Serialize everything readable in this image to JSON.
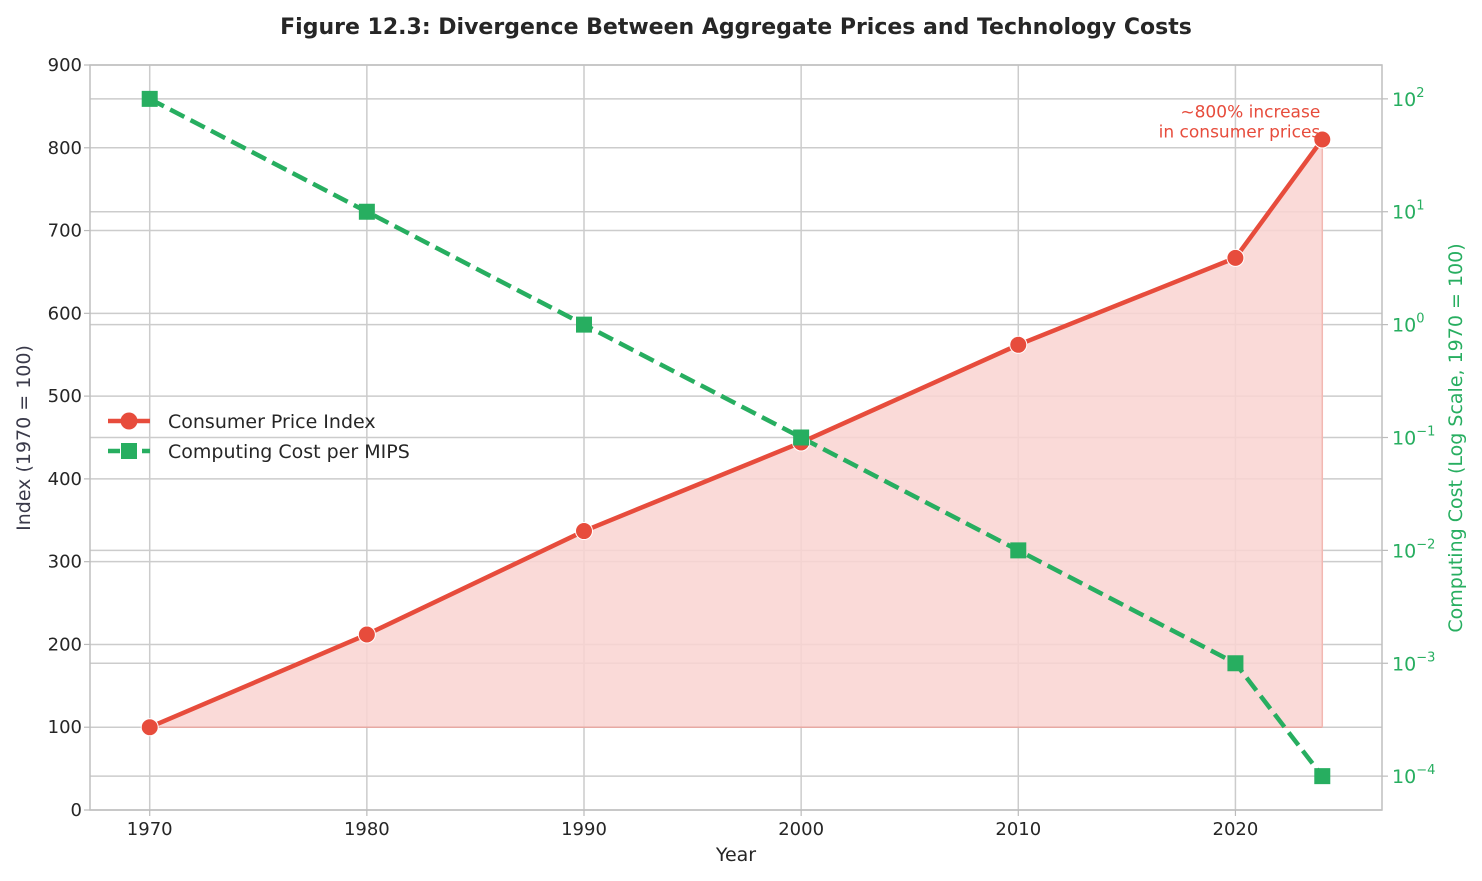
{
  "chart_data": {
    "type": "line",
    "title": "Figure 12.3: Divergence Between Aggregate Prices and Technology Costs",
    "xlabel": "Year",
    "ylabel_left": "Index (1970 = 100)",
    "ylabel_right": "Computing Cost (Log Scale, 1970 = 100)",
    "x_ticks": [
      "1970",
      "1980",
      "1990",
      "2000",
      "2010",
      "2020"
    ],
    "xlim": [
      1967.25,
      2026.75
    ],
    "ylim_left": [
      0,
      900
    ],
    "y_ticks_left": [
      "0",
      "100",
      "200",
      "300",
      "400",
      "500",
      "600",
      "700",
      "800",
      "900"
    ],
    "y_right_scale": "log",
    "ylim_right_log10": [
      -4.3,
      2.3
    ],
    "y_ticks_right": [
      {
        "base": "10",
        "exp": "2",
        "log10": 2
      },
      {
        "base": "10",
        "exp": "1",
        "log10": 1
      },
      {
        "base": "10",
        "exp": "0",
        "log10": 0
      },
      {
        "base": "10",
        "exp": "−1",
        "log10": -1
      },
      {
        "base": "10",
        "exp": "−2",
        "log10": -2
      },
      {
        "base": "10",
        "exp": "−3",
        "log10": -3
      },
      {
        "base": "10",
        "exp": "−4",
        "log10": -4
      }
    ],
    "grid": true,
    "legend_position": "center-left",
    "series": [
      {
        "name": "Consumer Price Index",
        "axis": "left",
        "color": "#e74c3c",
        "marker": "circle",
        "line_style": "solid",
        "fill_color": "#f9d4d1",
        "fill_baseline": 100,
        "x": [
          1970,
          1980,
          1990,
          2000,
          2010,
          2020,
          2024
        ],
        "y": [
          100,
          212,
          337,
          444,
          562,
          667,
          810
        ]
      },
      {
        "name": "Computing Cost per MIPS",
        "axis": "right",
        "color": "#27ae60",
        "marker": "square",
        "line_style": "dashed",
        "x": [
          1970,
          1980,
          1990,
          2000,
          2010,
          2020,
          2024
        ],
        "y": [
          100,
          10,
          1,
          0.1,
          0.01,
          0.001,
          0.0001
        ]
      }
    ],
    "annotation": {
      "lines": [
        "~800% increase",
        "in consumer prices"
      ],
      "x": 2024,
      "y": 810,
      "color": "#e74c3c"
    }
  }
}
